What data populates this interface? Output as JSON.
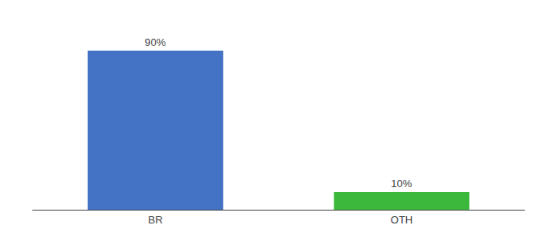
{
  "chart_data": {
    "type": "bar",
    "categories": [
      "BR",
      "OTH"
    ],
    "values": [
      90,
      10
    ],
    "value_labels": [
      "90%",
      "10%"
    ],
    "colors": [
      "#4472c4",
      "#3cb93c"
    ],
    "ylim": [
      0,
      105
    ],
    "data_labels": true,
    "tick_labels": "x",
    "grid": false
  }
}
